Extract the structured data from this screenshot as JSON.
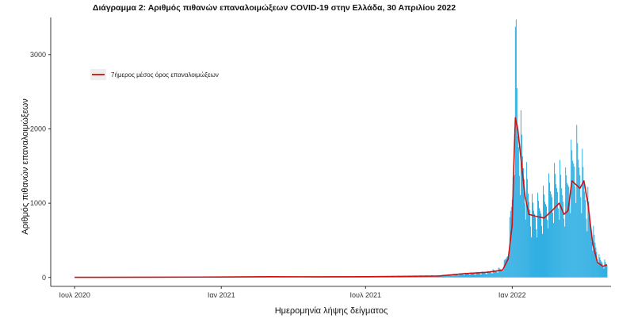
{
  "chart_data": {
    "type": "bar",
    "title": "Διάγραμμα 2: Αριθμός πιθανών επαναλοιμώξεων COVID-19 στην Ελλάδα, 30 Απριλίου 2022",
    "xlabel": "Ημερομηνία λήψης δείγματος",
    "ylabel": "Αριθμός πιθανών επαναλοιμώξεων",
    "xlim": [
      "2020-06-01",
      "2022-05-05"
    ],
    "ylim": [
      -120,
      3500
    ],
    "x_ticks": [
      {
        "date": "2020-07-01",
        "label": "Ιουλ 2020"
      },
      {
        "date": "2021-01-01",
        "label": "Ιαν 2021"
      },
      {
        "date": "2021-07-01",
        "label": "Ιουλ 2021"
      },
      {
        "date": "2022-01-01",
        "label": "Ιαν 2022"
      }
    ],
    "y_ticks": [
      0,
      1000,
      2000,
      3000
    ],
    "grid": false,
    "legend": {
      "placement": "top-left",
      "entries": [
        {
          "label": "7ήμερος μέσος όρος επαναλοιμώξεων",
          "color": "#cc1111",
          "kind": "line"
        }
      ]
    },
    "colors": {
      "bars": "#1fa8e0",
      "line": "#cc1111",
      "axis": "#000000"
    },
    "daily_bars_anchors": [
      [
        "2020-07-01",
        2
      ],
      [
        "2020-10-01",
        4
      ],
      [
        "2021-01-01",
        8
      ],
      [
        "2021-03-01",
        12
      ],
      [
        "2021-05-01",
        10
      ],
      [
        "2021-07-01",
        12
      ],
      [
        "2021-08-15",
        20
      ],
      [
        "2021-10-01",
        25
      ],
      [
        "2021-11-01",
        50
      ],
      [
        "2021-12-01",
        70
      ],
      [
        "2021-12-20",
        120
      ],
      [
        "2021-12-27",
        350
      ],
      [
        "2022-01-01",
        1100
      ],
      [
        "2022-01-04",
        2300
      ],
      [
        "2022-01-06",
        3100
      ],
      [
        "2022-01-08",
        2000
      ],
      [
        "2022-01-12",
        1800
      ],
      [
        "2022-01-18",
        1300
      ],
      [
        "2022-01-25",
        900
      ],
      [
        "2022-02-01",
        900
      ],
      [
        "2022-02-10",
        1000
      ],
      [
        "2022-02-20",
        1200
      ],
      [
        "2022-03-01",
        1300
      ],
      [
        "2022-03-07",
        1100
      ],
      [
        "2022-03-14",
        1400
      ],
      [
        "2022-03-21",
        1700
      ],
      [
        "2022-03-28",
        1500
      ],
      [
        "2022-04-04",
        1100
      ],
      [
        "2022-04-12",
        600
      ],
      [
        "2022-04-20",
        250
      ],
      [
        "2022-04-30",
        170
      ]
    ],
    "seven_day_average": [
      [
        "2020-07-01",
        2
      ],
      [
        "2020-10-01",
        4
      ],
      [
        "2021-01-01",
        6
      ],
      [
        "2021-03-01",
        10
      ],
      [
        "2021-05-01",
        9
      ],
      [
        "2021-07-01",
        10
      ],
      [
        "2021-08-15",
        15
      ],
      [
        "2021-10-01",
        20
      ],
      [
        "2021-11-01",
        50
      ],
      [
        "2021-12-01",
        70
      ],
      [
        "2021-12-20",
        100
      ],
      [
        "2021-12-27",
        250
      ],
      [
        "2022-01-01",
        700
      ],
      [
        "2022-01-03",
        1500
      ],
      [
        "2022-01-05",
        2150
      ],
      [
        "2022-01-08",
        2000
      ],
      [
        "2022-01-12",
        1600
      ],
      [
        "2022-01-17",
        1100
      ],
      [
        "2022-01-22",
        850
      ],
      [
        "2022-02-01",
        820
      ],
      [
        "2022-02-10",
        800
      ],
      [
        "2022-02-20",
        900
      ],
      [
        "2022-03-01",
        1000
      ],
      [
        "2022-03-07",
        850
      ],
      [
        "2022-03-12",
        900
      ],
      [
        "2022-03-17",
        1300
      ],
      [
        "2022-03-22",
        1250
      ],
      [
        "2022-03-27",
        1200
      ],
      [
        "2022-04-01",
        1300
      ],
      [
        "2022-04-06",
        1000
      ],
      [
        "2022-04-12",
        450
      ],
      [
        "2022-04-18",
        200
      ],
      [
        "2022-04-25",
        150
      ],
      [
        "2022-04-30",
        170
      ]
    ]
  }
}
